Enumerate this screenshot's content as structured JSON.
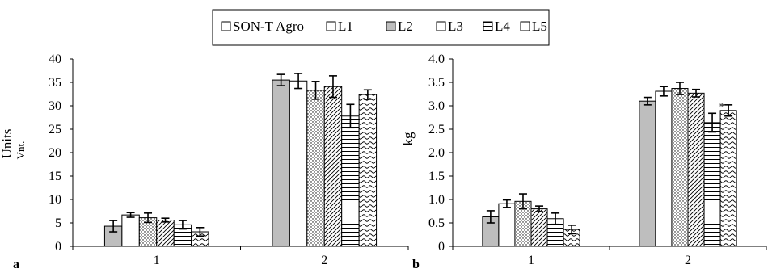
{
  "legend": {
    "items": [
      {
        "label": "SON-T Agro",
        "pattern": "white"
      },
      {
        "label": "L1",
        "pattern": "white"
      },
      {
        "label": "L2",
        "pattern": "gray"
      },
      {
        "label": "L3",
        "pattern": "white"
      },
      {
        "label": "L4",
        "pattern": "hlines"
      },
      {
        "label": "L5",
        "pattern": "white"
      }
    ]
  },
  "chart_data": [
    {
      "type": "bar",
      "panel_label": "a",
      "ylabel": "Units",
      "ylabel_sub": "Vnt.",
      "ylim": [
        0,
        40
      ],
      "yticks": [
        0,
        5,
        10,
        15,
        20,
        25,
        30,
        35,
        40
      ],
      "categories": [
        "1",
        "2"
      ],
      "series": [
        {
          "pattern": "gray",
          "values": [
            4.3,
            35.5
          ],
          "errors": [
            1.2,
            1.2
          ]
        },
        {
          "pattern": "white",
          "values": [
            6.7,
            35.3
          ],
          "errors": [
            0.5,
            1.6
          ]
        },
        {
          "pattern": "dots",
          "values": [
            6.1,
            33.3
          ],
          "errors": [
            1.0,
            1.9
          ]
        },
        {
          "pattern": "diagonal",
          "values": [
            5.6,
            34.1
          ],
          "errors": [
            0.4,
            2.3
          ]
        },
        {
          "pattern": "hlines",
          "values": [
            4.6,
            27.8
          ],
          "errors": [
            0.9,
            2.5
          ]
        },
        {
          "pattern": "waves",
          "values": [
            3.1,
            32.4
          ],
          "errors": [
            0.9,
            1.0
          ]
        }
      ],
      "annotations": []
    },
    {
      "type": "bar",
      "panel_label": "b",
      "ylabel": "kg",
      "ylim": [
        0,
        4.0
      ],
      "yticks": [
        "0",
        "0.5",
        "1.0",
        "1.5",
        "2.0",
        "2.5",
        "3.0",
        "3.5",
        "4.0"
      ],
      "categories": [
        "1",
        "2"
      ],
      "series": [
        {
          "pattern": "gray",
          "values": [
            0.63,
            3.1
          ],
          "errors": [
            0.13,
            0.08
          ]
        },
        {
          "pattern": "white",
          "values": [
            0.91,
            3.31
          ],
          "errors": [
            0.08,
            0.1
          ]
        },
        {
          "pattern": "dots",
          "values": [
            0.96,
            3.37
          ],
          "errors": [
            0.16,
            0.13
          ]
        },
        {
          "pattern": "diagonal",
          "values": [
            0.8,
            3.27
          ],
          "errors": [
            0.06,
            0.08
          ]
        },
        {
          "pattern": "hlines",
          "values": [
            0.59,
            2.64
          ],
          "errors": [
            0.12,
            0.2
          ]
        },
        {
          "pattern": "waves",
          "values": [
            0.36,
            2.9
          ],
          "errors": [
            0.09,
            0.12
          ]
        }
      ],
      "annotations": [
        {
          "text": "*",
          "category": "2",
          "series_index": 4
        }
      ]
    }
  ]
}
